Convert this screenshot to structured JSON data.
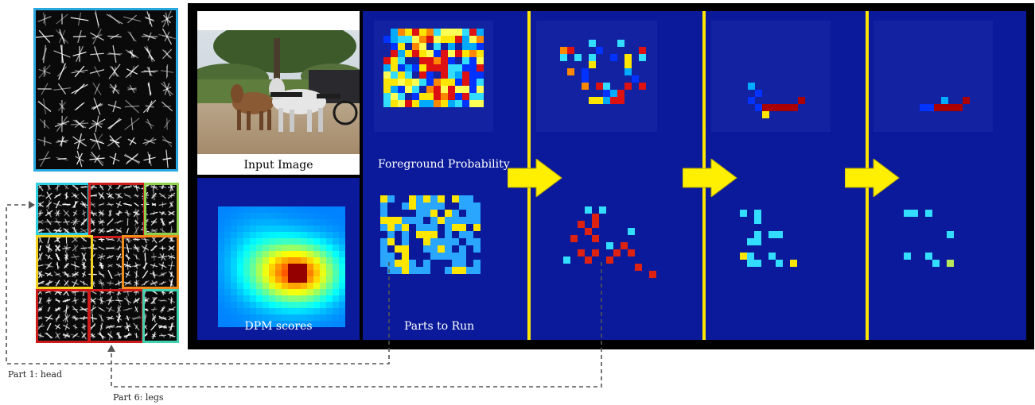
{
  "labels": {
    "input_image": "Input Image",
    "foreground_probability": "Foreground Probability",
    "dpm_scores": "DPM scores",
    "parts_to_run": "Parts to Run",
    "part1": "Part 1: head",
    "part6": "Part 6: legs"
  },
  "colors": {
    "frame": "#000000",
    "panel_blue": "#0a1a9a",
    "divider": "#ffe600",
    "arrow": "#ffef00",
    "hog_border_top": "#29a8e0",
    "part_red": "#cc1b1b",
    "part_cyan": "#2fd0e0",
    "part_green": "#8fd14f",
    "part_yellow": "#f2d21c",
    "part_orange": "#f08c1a",
    "part_teal": "#3fd1b0"
  },
  "icons": {
    "arrow": "right-arrow-icon",
    "hog_root": "hog-root-filter-image",
    "hog_parts": "hog-parts-filter-image",
    "photo": "horses-photo"
  }
}
